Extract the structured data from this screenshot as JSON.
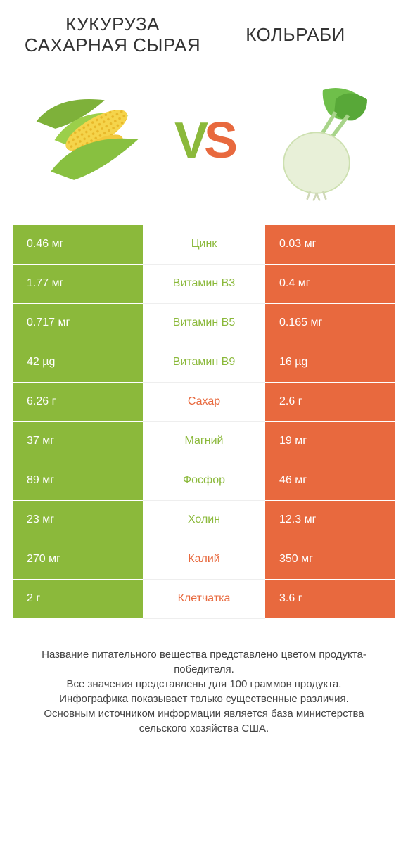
{
  "header": {
    "left_title": "КУКУРУЗА САХАРНАЯ СЫРАЯ",
    "right_title": "КОЛЬРАБИ",
    "vs_v": "V",
    "vs_s": "S"
  },
  "colors": {
    "left_bg": "#8bb93b",
    "right_bg": "#e8693e",
    "mid_left_text": "#8bb93b",
    "mid_right_text": "#e8693e",
    "page_bg": "#ffffff",
    "body_text": "#333333"
  },
  "rows": [
    {
      "left": "0.46 мг",
      "label": "Цинк",
      "winner": "left",
      "right": "0.03 мг"
    },
    {
      "left": "1.77 мг",
      "label": "Витамин B3",
      "winner": "left",
      "right": "0.4 мг"
    },
    {
      "left": "0.717 мг",
      "label": "Витамин B5",
      "winner": "left",
      "right": "0.165 мг"
    },
    {
      "left": "42 µg",
      "label": "Витамин B9",
      "winner": "left",
      "right": "16 µg"
    },
    {
      "left": "6.26 г",
      "label": "Сахар",
      "winner": "right",
      "right": "2.6 г"
    },
    {
      "left": "37 мг",
      "label": "Магний",
      "winner": "left",
      "right": "19 мг"
    },
    {
      "left": "89 мг",
      "label": "Фосфор",
      "winner": "left",
      "right": "46 мг"
    },
    {
      "left": "23 мг",
      "label": "Холин",
      "winner": "left",
      "right": "12.3 мг"
    },
    {
      "left": "270 мг",
      "label": "Калий",
      "winner": "right",
      "right": "350 мг"
    },
    {
      "left": "2 г",
      "label": "Клетчатка",
      "winner": "right",
      "right": "3.6 г"
    }
  ],
  "footer_lines": [
    "Название питательного вещества представлено цветом продукта-победителя.",
    "Все значения представлены для 100 граммов продукта.",
    "Инфографика показывает только существенные различия.",
    "Основным источником информации является база министерства сельского хозяйства США."
  ]
}
